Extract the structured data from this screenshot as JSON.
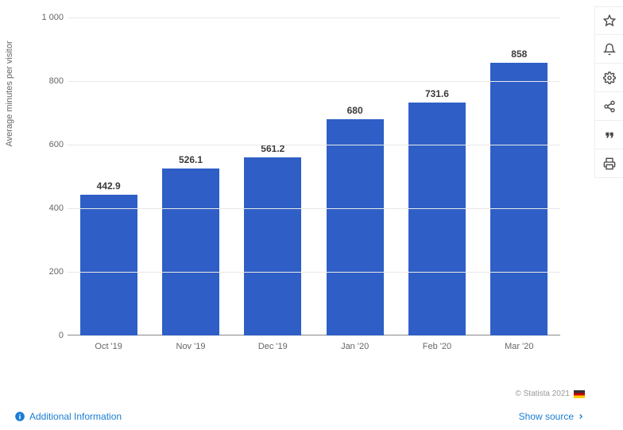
{
  "chart": {
    "type": "bar",
    "categories": [
      "Oct '19",
      "Nov '19",
      "Dec '19",
      "Jan '20",
      "Feb '20",
      "Mar '20"
    ],
    "values": [
      442.9,
      526.1,
      561.2,
      680,
      731.6,
      858
    ],
    "value_labels": [
      "442.9",
      "526.1",
      "561.2",
      "680",
      "731.6",
      "858"
    ],
    "bar_color": "#2f5fc6",
    "ylabel": "Average minutes per visitor",
    "ylim_min": 0,
    "ylim_max": 1000,
    "ytick_step": 200,
    "yticks": [
      "0",
      "200",
      "400",
      "600",
      "800",
      "1 000"
    ],
    "grid_color": "#e8e8e8",
    "background_color": "#ffffff",
    "axis_font_size": 11,
    "label_font_size": 12
  },
  "footer": {
    "additional_info": "Additional Information",
    "show_source": "Show source",
    "copyright": "© Statista 2021"
  },
  "toolbar_icons": {
    "star": "star-icon",
    "bell": "bell-icon",
    "gear": "gear-icon",
    "share": "share-icon",
    "quote": "quote-icon",
    "print": "print-icon"
  }
}
